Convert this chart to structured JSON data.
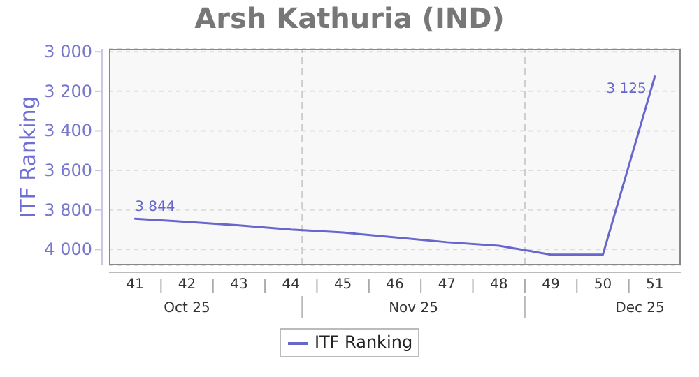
{
  "chart_data": {
    "type": "line",
    "title": "Arsh Kathuria (IND)",
    "ylabel": "ITF Ranking",
    "x": [
      "--10-09T12:00",
      "--10-16T12:00",
      "--10-23T12:00",
      "--10-30T12:00",
      "--11-06T12:00",
      "--11-13T12:00",
      "--11-20T12:00",
      "--11-27T12:00",
      "--12-04T12:00",
      "--12-11T12:00",
      "--12-18T12:00"
    ],
    "series": [
      {
        "name": "ITF Ranking",
        "color": "#6666cc",
        "values": [
          3844,
          3860,
          3878,
          3899,
          3914,
          3939,
          3963,
          3981,
          4026,
          4026,
          3125
        ],
        "value_labels": [
          "3 844",
          null,
          null,
          null,
          null,
          null,
          null,
          null,
          null,
          null,
          "3 125"
        ]
      }
    ],
    "xlim": [
      "--10-06",
      "--12-22"
    ],
    "xticks": [
      {
        "value": "--10-09T12:00",
        "label": "41"
      },
      {
        "value": "--10-13",
        "label": null
      },
      {
        "value": "--10-16T12:00",
        "label": "42"
      },
      {
        "value": "--10-20",
        "label": null
      },
      {
        "value": "--10-23T12:00",
        "label": "43"
      },
      {
        "value": "--10-27",
        "label": null
      },
      {
        "value": "--10-30T12:00",
        "label": "44"
      },
      {
        "value": "--11-03",
        "label": null
      },
      {
        "value": "--11-06T12:00",
        "label": "45"
      },
      {
        "value": "--11-10",
        "label": null
      },
      {
        "value": "--11-13T12:00",
        "label": "46"
      },
      {
        "value": "--11-17",
        "label": null
      },
      {
        "value": "--11-20T12:00",
        "label": "47"
      },
      {
        "value": "--11-24",
        "label": null
      },
      {
        "value": "--11-27T12:00",
        "label": "48"
      },
      {
        "value": "--12-01",
        "label": null
      },
      {
        "value": "--12-04T12:00",
        "label": "49"
      },
      {
        "value": "--12-08",
        "label": null
      },
      {
        "value": "--12-11T12:00",
        "label": "50"
      },
      {
        "value": "--12-15",
        "label": null
      },
      {
        "value": "--12-18T12:00",
        "label": "51"
      }
    ],
    "x2lim": [
      "2025-10-06",
      "2025-12-22"
    ],
    "x2ticks": [
      {
        "value": "2025-10-16T12:00",
        "label": "Oct 25"
      },
      {
        "value": "2025-11-01",
        "label": null
      },
      {
        "value": "2025-11-16",
        "label": "Nov 25"
      },
      {
        "value": "2025-12-01",
        "label": null
      },
      {
        "value": "2025-12-16T12:00",
        "label": "Dec 25"
      }
    ],
    "ylim": [
      4080,
      2985
    ],
    "yticks": [
      {
        "value": 3000,
        "label": "3 000"
      },
      {
        "value": 3200,
        "label": "3 200"
      },
      {
        "value": 3400,
        "label": "3 400"
      },
      {
        "value": 3600,
        "label": "3 600"
      },
      {
        "value": 3800,
        "label": "3 800"
      },
      {
        "value": 4000,
        "label": "4 000"
      }
    ],
    "ref_lines": [
      {
        "axis": "x",
        "value": "--11-01",
        "color": "#cccccc",
        "line_style": "dashed"
      },
      {
        "axis": "x",
        "value": "--12-01",
        "color": "#cccccc",
        "line_style": "dashed"
      }
    ],
    "grid": "y",
    "legend": "bottom",
    "marker": "none",
    "line_style": "solid"
  }
}
